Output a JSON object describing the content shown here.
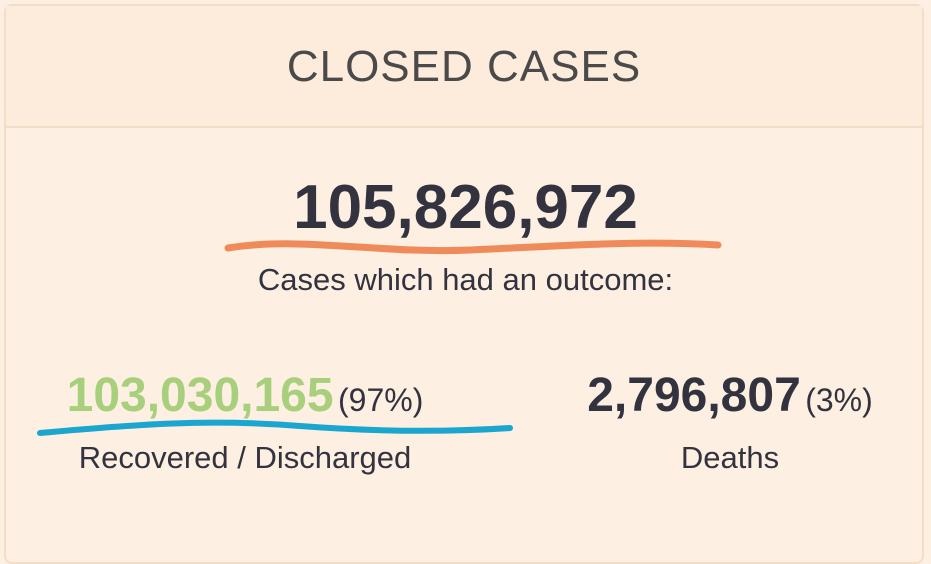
{
  "header": {
    "title": "CLOSED CASES"
  },
  "total": {
    "value": "105,826,972",
    "label": "Cases which had an outcome:"
  },
  "recovered": {
    "value": "103,030,165",
    "percent": "(97%)",
    "label": "Recovered / Discharged"
  },
  "deaths": {
    "value": "2,796,807",
    "percent": "(3%)",
    "label": "Deaths"
  }
}
